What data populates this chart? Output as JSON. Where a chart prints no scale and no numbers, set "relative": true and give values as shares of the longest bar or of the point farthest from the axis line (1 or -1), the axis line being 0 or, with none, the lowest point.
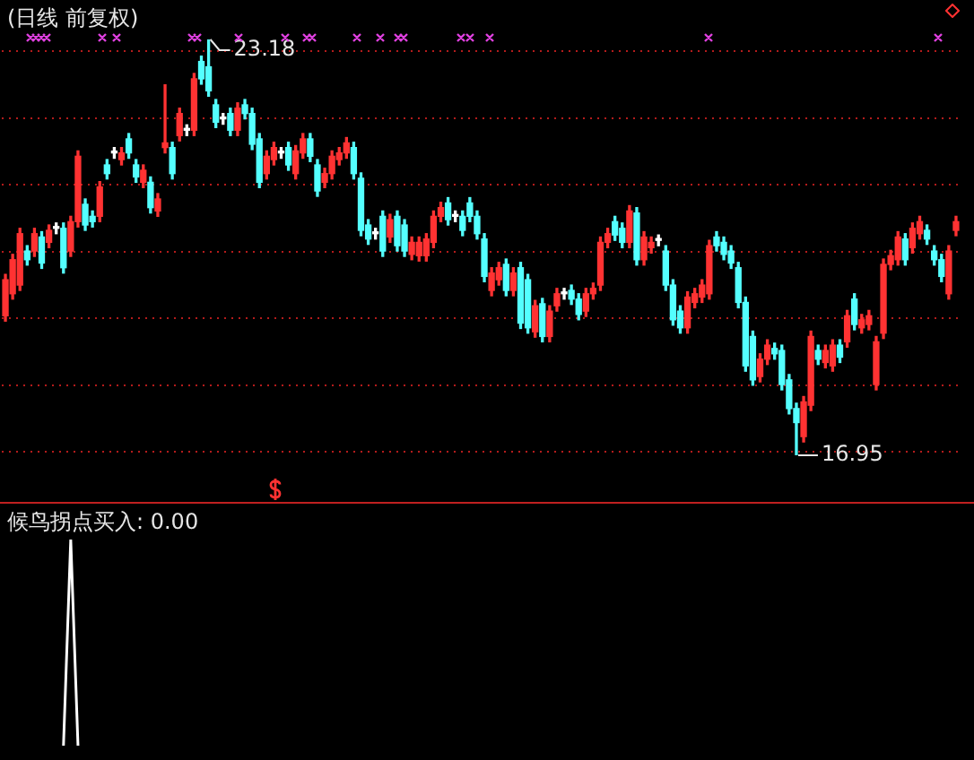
{
  "chart_data": [
    {
      "type": "candlestick",
      "title": "(日线 前复权)",
      "categories": [
        null,
        null,
        null,
        null,
        null,
        null,
        null,
        null,
        null,
        null,
        null,
        null,
        null,
        null,
        null,
        null,
        null,
        null,
        null,
        null,
        null,
        null,
        null,
        null,
        null,
        null,
        null,
        null,
        null,
        null,
        null,
        null,
        null,
        null,
        null,
        null,
        null,
        null,
        null,
        null,
        null,
        null,
        null,
        null,
        null,
        null,
        null,
        null,
        null,
        null,
        null,
        null,
        null,
        null,
        null,
        null,
        null,
        null,
        null,
        null,
        null,
        null,
        null,
        null,
        null,
        null,
        null,
        null,
        null,
        null,
        null,
        null,
        null,
        null,
        null,
        null,
        null,
        null,
        null,
        null,
        null,
        null,
        null,
        null,
        null,
        null,
        null,
        null,
        null,
        null,
        null,
        null,
        null,
        null,
        null,
        null,
        null,
        null,
        null,
        null,
        null,
        null,
        null,
        null,
        null,
        null,
        null,
        null,
        null,
        null,
        null,
        null,
        null,
        null,
        null,
        null,
        null,
        null,
        null,
        null,
        null,
        null,
        null,
        null,
        null,
        null,
        null,
        null,
        null,
        null,
        null,
        null
      ],
      "ohlc": [
        [
          19.04,
          19.66,
          18.96,
          19.58
        ],
        [
          19.37,
          19.96,
          19.29,
          19.88
        ],
        [
          19.5,
          20.35,
          19.42,
          20.27
        ],
        [
          20.01,
          20.09,
          19.8,
          19.88
        ],
        [
          20.01,
          20.35,
          19.93,
          20.27
        ],
        [
          20.22,
          20.3,
          19.75,
          19.83
        ],
        [
          20.14,
          20.4,
          20.06,
          20.32
        ],
        [
          20.35,
          20.43,
          20.27,
          20.35
        ],
        [
          20.35,
          20.43,
          19.68,
          19.76
        ],
        [
          20.01,
          20.53,
          19.93,
          20.45
        ],
        [
          20.45,
          21.51,
          20.37,
          21.43
        ],
        [
          20.71,
          20.79,
          20.32,
          20.4
        ],
        [
          20.53,
          20.61,
          20.37,
          20.45
        ],
        [
          20.53,
          21.05,
          20.45,
          20.97
        ],
        [
          21.3,
          21.38,
          21.09,
          21.17
        ],
        [
          21.48,
          21.56,
          21.4,
          21.48
        ],
        [
          21.38,
          21.56,
          21.3,
          21.48
        ],
        [
          21.69,
          21.77,
          21.4,
          21.48
        ],
        [
          21.3,
          21.38,
          21.04,
          21.12
        ],
        [
          21.04,
          21.3,
          20.96,
          21.22
        ],
        [
          21.04,
          21.12,
          20.58,
          20.66
        ],
        [
          20.61,
          20.87,
          20.53,
          20.79
        ],
        [
          21.56,
          22.5,
          21.48,
          21.63
        ],
        [
          21.56,
          21.64,
          21.09,
          21.17
        ],
        [
          21.74,
          22.15,
          21.66,
          22.07
        ],
        [
          21.82,
          21.9,
          21.74,
          21.82
        ],
        [
          21.82,
          22.67,
          21.74,
          22.59
        ],
        [
          22.85,
          22.93,
          22.51,
          22.59
        ],
        [
          22.77,
          23.18,
          22.33,
          22.41
        ],
        [
          22.2,
          22.28,
          21.86,
          21.94
        ],
        [
          21.99,
          22.07,
          21.91,
          21.99
        ],
        [
          22.07,
          22.15,
          21.74,
          21.82
        ],
        [
          21.82,
          22.23,
          21.74,
          22.15
        ],
        [
          22.2,
          22.28,
          21.99,
          22.07
        ],
        [
          22.07,
          22.15,
          21.53,
          21.61
        ],
        [
          21.69,
          21.77,
          20.96,
          21.04
        ],
        [
          21.17,
          21.51,
          21.09,
          21.43
        ],
        [
          21.38,
          21.64,
          21.3,
          21.56
        ],
        [
          21.48,
          21.56,
          21.4,
          21.48
        ],
        [
          21.56,
          21.64,
          21.22,
          21.3
        ],
        [
          21.17,
          21.59,
          21.09,
          21.51
        ],
        [
          21.48,
          21.77,
          21.4,
          21.69
        ],
        [
          21.69,
          21.77,
          21.35,
          21.43
        ],
        [
          21.3,
          21.38,
          20.83,
          20.91
        ],
        [
          21.04,
          21.25,
          20.96,
          21.17
        ],
        [
          21.17,
          21.51,
          21.09,
          21.43
        ],
        [
          21.38,
          21.56,
          21.3,
          21.48
        ],
        [
          21.48,
          21.71,
          21.4,
          21.63
        ],
        [
          21.56,
          21.64,
          21.09,
          21.17
        ],
        [
          21.1,
          21.18,
          20.24,
          20.32
        ],
        [
          20.4,
          20.48,
          20.11,
          20.19
        ],
        [
          20.27,
          20.35,
          20.19,
          20.27
        ],
        [
          20.53,
          20.61,
          19.93,
          20.01
        ],
        [
          20.22,
          20.56,
          20.14,
          20.48
        ],
        [
          20.53,
          20.61,
          20.01,
          20.09
        ],
        [
          20.4,
          20.48,
          19.93,
          20.01
        ],
        [
          19.96,
          20.22,
          19.88,
          20.14
        ],
        [
          19.94,
          20.22,
          19.86,
          20.14
        ],
        [
          19.94,
          20.27,
          19.86,
          20.19
        ],
        [
          20.14,
          20.61,
          20.06,
          20.53
        ],
        [
          20.53,
          20.74,
          20.45,
          20.66
        ],
        [
          20.73,
          20.81,
          20.4,
          20.48
        ],
        [
          20.53,
          20.61,
          20.45,
          20.53
        ],
        [
          20.53,
          20.61,
          20.24,
          20.32
        ],
        [
          20.73,
          20.81,
          20.45,
          20.53
        ],
        [
          20.53,
          20.61,
          20.19,
          20.27
        ],
        [
          20.19,
          20.27,
          19.55,
          19.63
        ],
        [
          19.42,
          19.76,
          19.34,
          19.68
        ],
        [
          19.58,
          19.84,
          19.5,
          19.76
        ],
        [
          19.81,
          19.89,
          19.34,
          19.42
        ],
        [
          19.42,
          19.76,
          19.34,
          19.68
        ],
        [
          19.76,
          19.84,
          18.85,
          18.93
        ],
        [
          19.58,
          19.66,
          18.78,
          18.86
        ],
        [
          18.8,
          19.27,
          18.72,
          19.19
        ],
        [
          19.22,
          19.3,
          18.65,
          18.73
        ],
        [
          18.73,
          19.19,
          18.65,
          19.11
        ],
        [
          19.19,
          19.45,
          19.11,
          19.37
        ],
        [
          19.37,
          19.45,
          19.29,
          19.37
        ],
        [
          19.42,
          19.5,
          19.21,
          19.29
        ],
        [
          19.29,
          19.37,
          18.98,
          19.06
        ],
        [
          19.11,
          19.45,
          19.03,
          19.37
        ],
        [
          19.37,
          19.53,
          19.29,
          19.45
        ],
        [
          19.5,
          20.22,
          19.42,
          20.14
        ],
        [
          20.14,
          20.35,
          20.06,
          20.27
        ],
        [
          20.45,
          20.53,
          20.17,
          20.25
        ],
        [
          20.35,
          20.43,
          20.06,
          20.14
        ],
        [
          20.14,
          20.69,
          20.06,
          20.61
        ],
        [
          20.58,
          20.66,
          19.8,
          19.88
        ],
        [
          19.88,
          20.3,
          19.8,
          20.22
        ],
        [
          20.06,
          20.22,
          19.98,
          20.14
        ],
        [
          20.17,
          20.25,
          20.09,
          20.17
        ],
        [
          20.01,
          20.09,
          19.42,
          19.5
        ],
        [
          19.5,
          19.58,
          18.9,
          18.98
        ],
        [
          19.11,
          19.19,
          18.78,
          18.86
        ],
        [
          18.86,
          19.4,
          18.78,
          19.32
        ],
        [
          19.24,
          19.45,
          19.16,
          19.37
        ],
        [
          19.32,
          19.58,
          19.24,
          19.5
        ],
        [
          19.37,
          20.17,
          19.29,
          20.09
        ],
        [
          20.22,
          20.3,
          20.01,
          20.09
        ],
        [
          20.14,
          20.22,
          19.88,
          19.96
        ],
        [
          20.01,
          20.09,
          19.75,
          19.83
        ],
        [
          19.76,
          19.84,
          19.16,
          19.24
        ],
        [
          19.24,
          19.32,
          18.21,
          18.29
        ],
        [
          18.73,
          18.81,
          18.0,
          18.08
        ],
        [
          18.13,
          18.47,
          18.05,
          18.39
        ],
        [
          18.39,
          18.68,
          18.31,
          18.6
        ],
        [
          18.55,
          18.63,
          18.39,
          18.47
        ],
        [
          18.52,
          18.6,
          17.93,
          18.01
        ],
        [
          18.08,
          18.16,
          17.57,
          17.65
        ],
        [
          17.65,
          17.73,
          16.95,
          17.44
        ],
        [
          17.23,
          17.83,
          17.15,
          17.75
        ],
        [
          17.7,
          18.81,
          17.62,
          18.73
        ],
        [
          18.52,
          18.6,
          18.31,
          18.39
        ],
        [
          18.34,
          18.6,
          18.26,
          18.52
        ],
        [
          18.29,
          18.68,
          18.21,
          18.6
        ],
        [
          18.6,
          18.68,
          18.34,
          18.42
        ],
        [
          18.65,
          19.12,
          18.57,
          19.04
        ],
        [
          19.29,
          19.37,
          18.83,
          18.91
        ],
        [
          18.86,
          19.06,
          18.78,
          18.98
        ],
        [
          18.91,
          19.12,
          18.83,
          19.04
        ],
        [
          18.01,
          18.73,
          17.93,
          18.65
        ],
        [
          18.78,
          19.89,
          18.7,
          19.81
        ],
        [
          19.81,
          20.02,
          19.73,
          19.94
        ],
        [
          19.88,
          20.3,
          19.8,
          20.22
        ],
        [
          20.19,
          20.27,
          19.8,
          19.88
        ],
        [
          20.06,
          20.43,
          19.98,
          20.35
        ],
        [
          20.27,
          20.53,
          20.19,
          20.45
        ],
        [
          20.32,
          20.4,
          20.11,
          20.19
        ],
        [
          20.01,
          20.09,
          19.8,
          19.88
        ],
        [
          19.88,
          19.96,
          19.55,
          19.63
        ],
        [
          19.37,
          20.09,
          19.29,
          20.01
        ],
        [
          20.32,
          20.53,
          20.24,
          20.45
        ]
      ],
      "colors": [
        "#ff3232",
        "#ff3232",
        "#ff3232",
        "#54ffff",
        "#ff3232",
        "#54ffff",
        "#ff3232",
        "#ffffff",
        "#54ffff",
        "#ff3232",
        "#ff3232",
        "#54ffff",
        "#54ffff",
        "#ff3232",
        "#54ffff",
        "#ffffff",
        "#ff3232",
        "#54ffff",
        "#54ffff",
        "#ff3232",
        "#54ffff",
        "#ff3232",
        "#ff3232",
        "#54ffff",
        "#ff3232",
        "#ffffff",
        "#ff3232",
        "#54ffff",
        "#54ffff",
        "#54ffff",
        "#ffffff",
        "#54ffff",
        "#ff3232",
        "#54ffff",
        "#54ffff",
        "#54ffff",
        "#ff3232",
        "#ff3232",
        "#ffffff",
        "#54ffff",
        "#ff3232",
        "#ff3232",
        "#54ffff",
        "#54ffff",
        "#ff3232",
        "#ff3232",
        "#ff3232",
        "#ff3232",
        "#54ffff",
        "#54ffff",
        "#54ffff",
        "#ffffff",
        "#54ffff",
        "#ff3232",
        "#54ffff",
        "#54ffff",
        "#ff3232",
        "#ff3232",
        "#ff3232",
        "#ff3232",
        "#ff3232",
        "#54ffff",
        "#ffffff",
        "#54ffff",
        "#54ffff",
        "#54ffff",
        "#54ffff",
        "#ff3232",
        "#ff3232",
        "#54ffff",
        "#ff3232",
        "#54ffff",
        "#54ffff",
        "#ff3232",
        "#54ffff",
        "#ff3232",
        "#ff3232",
        "#ffffff",
        "#54ffff",
        "#54ffff",
        "#ff3232",
        "#ff3232",
        "#ff3232",
        "#ff3232",
        "#54ffff",
        "#54ffff",
        "#ff3232",
        "#54ffff",
        "#ff3232",
        "#ff3232",
        "#ffffff",
        "#54ffff",
        "#54ffff",
        "#54ffff",
        "#ff3232",
        "#ff3232",
        "#ff3232",
        "#ff3232",
        "#54ffff",
        "#54ffff",
        "#54ffff",
        "#54ffff",
        "#54ffff",
        "#54ffff",
        "#ff3232",
        "#ff3232",
        "#54ffff",
        "#54ffff",
        "#54ffff",
        "#54ffff",
        "#ff3232",
        "#ff3232",
        "#54ffff",
        "#ff3232",
        "#ff3232",
        "#54ffff",
        "#ff3232",
        "#54ffff",
        "#ff3232",
        "#ff3232",
        "#ff3232",
        "#ff3232",
        "#ff3232",
        "#ff3232",
        "#54ffff",
        "#ff3232",
        "#ff3232",
        "#54ffff",
        "#54ffff",
        "#54ffff",
        "#ff3232",
        "#ff3232"
      ],
      "yticks": [
        {
          "value": 17,
          "label": null
        },
        {
          "value": 18,
          "label": null
        },
        {
          "value": 19,
          "label": null
        },
        {
          "value": 20,
          "label": null
        },
        {
          "value": 21,
          "label": null
        },
        {
          "value": 22,
          "label": null
        },
        {
          "value": 23,
          "label": null
        }
      ],
      "grid": "y",
      "tick_labels": false,
      "annotations": [
        "23.18",
        "16.95"
      ]
    },
    {
      "type": "line",
      "title": "候鸟拐点买入: 0.00",
      "relative": true,
      "tick_labels": false,
      "categories": [
        null,
        null,
        null,
        null,
        null,
        null,
        null,
        null,
        null,
        null,
        null,
        null,
        null,
        null,
        null,
        null,
        null,
        null,
        null,
        null,
        null,
        null,
        null,
        null,
        null,
        null,
        null,
        null,
        null,
        null,
        null,
        null,
        null,
        null,
        null,
        null,
        null,
        null,
        null,
        null,
        null,
        null,
        null,
        null,
        null,
        null,
        null,
        null,
        null,
        null,
        null,
        null,
        null,
        null,
        null,
        null,
        null,
        null,
        null,
        null,
        null,
        null,
        null,
        null,
        null,
        null,
        null,
        null,
        null,
        null,
        null,
        null,
        null,
        null,
        null,
        null,
        null,
        null,
        null,
        null,
        null,
        null,
        null,
        null,
        null,
        null,
        null,
        null,
        null,
        null,
        null,
        null,
        null,
        null,
        null,
        null,
        null,
        null,
        null,
        null,
        null,
        null,
        null,
        null,
        null,
        null,
        null,
        null,
        null,
        null,
        null,
        null,
        null,
        null,
        null,
        null,
        null,
        null,
        null,
        null,
        null,
        null,
        null,
        null,
        null,
        null,
        null,
        null,
        null,
        null,
        null,
        null
      ],
      "series": [
        {
          "color": "#ffffff",
          "values": [
            null,
            null,
            null,
            null,
            null,
            null,
            null,
            null,
            0,
            1,
            0,
            null,
            null,
            null,
            null,
            null,
            null,
            null,
            null,
            null,
            null,
            null,
            null,
            null,
            null,
            null,
            null,
            null,
            null,
            null,
            null,
            null,
            null,
            null,
            null,
            null,
            null,
            null,
            null,
            null,
            null,
            null,
            null,
            null,
            null,
            null,
            null,
            null,
            null,
            null,
            null,
            null,
            null,
            null,
            null,
            null,
            null,
            null,
            null,
            null,
            null,
            null,
            null,
            null,
            null,
            null,
            null,
            null,
            null,
            null,
            null,
            null,
            null,
            null,
            null,
            null,
            null,
            null,
            null,
            null,
            null,
            null,
            null,
            null,
            null,
            null,
            null,
            null,
            null,
            null,
            null,
            null,
            null,
            null,
            null,
            null,
            null,
            null,
            null,
            null,
            null,
            null,
            null,
            null,
            null,
            null,
            null,
            null,
            null,
            null,
            null,
            null,
            null,
            null,
            null,
            null,
            null,
            null,
            null,
            null,
            null,
            null,
            null,
            null,
            null,
            null,
            null,
            null,
            null,
            null,
            null,
            null
          ]
        }
      ]
    }
  ]
}
